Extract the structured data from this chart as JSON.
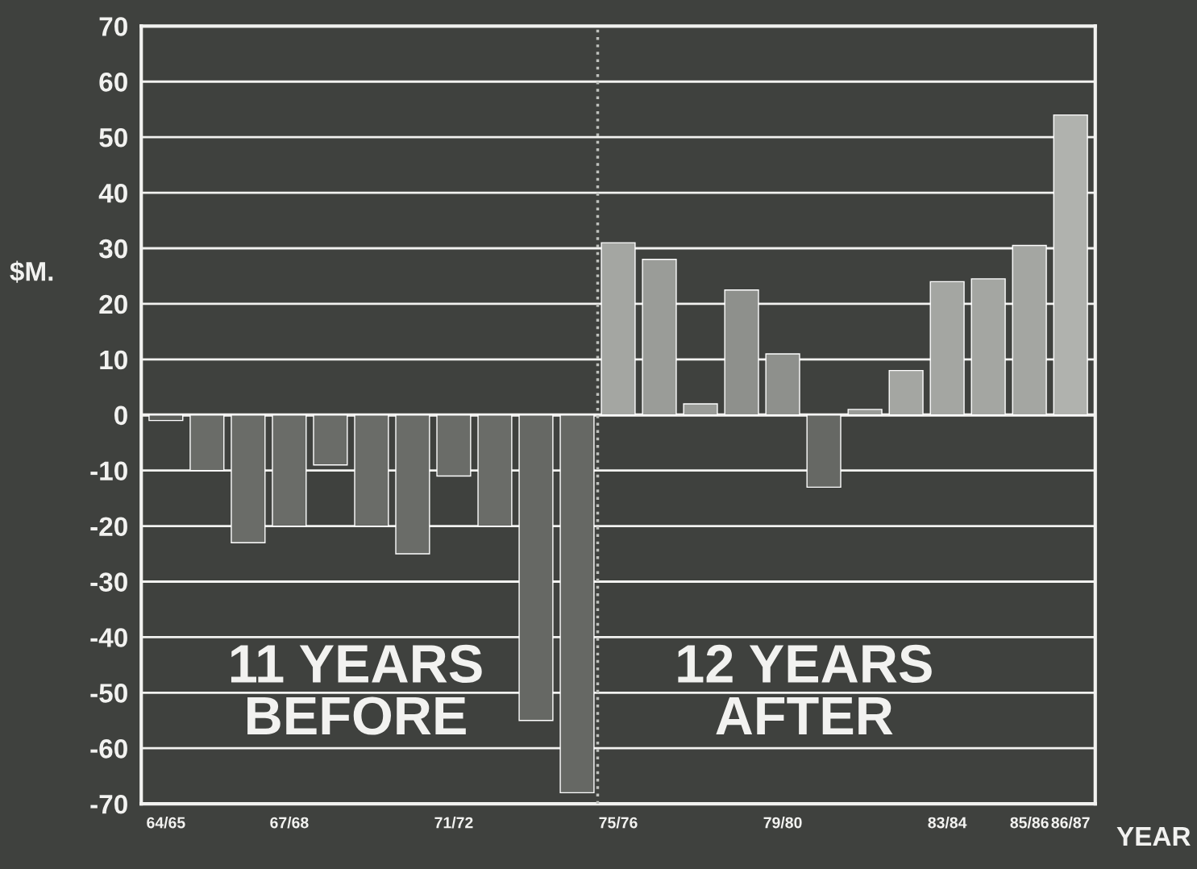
{
  "chart_data": {
    "type": "bar",
    "ylabel": "$M.",
    "xlabel": "YEAR",
    "categories": [
      "64/65",
      null,
      null,
      "67/68",
      null,
      null,
      null,
      "71/72",
      null,
      null,
      null,
      "75/76",
      null,
      null,
      null,
      "79/80",
      null,
      null,
      null,
      "83/84",
      null,
      "85/86",
      "86/87"
    ],
    "values": [
      -1,
      -10,
      -23,
      -20,
      -9,
      -20,
      -25,
      -11,
      -20,
      -55,
      -68,
      31,
      28,
      2,
      22.5,
      11,
      -13,
      1,
      8,
      24,
      24.5,
      30.5,
      54
    ],
    "colors": [
      "#5c5e5a",
      "#6a6c68",
      "#6a6c68",
      "#6a6c68",
      "#6a6c68",
      "#6a6c68",
      "#6a6c68",
      "#6a6c68",
      "#6a6c68",
      "#666864",
      "#666864",
      "#a4a6a2",
      "#9a9c98",
      "#9a9c98",
      "#8e908c",
      "#8e908c",
      "#666864",
      "#9a9c98",
      "#a4a6a2",
      "#a4a6a2",
      "#a4a6a2",
      "#a4a6a2",
      "#b0b2ae"
    ],
    "ylim": [
      -70,
      70
    ],
    "yticks": [
      -70,
      -60,
      -50,
      -40,
      -30,
      -20,
      -10,
      0,
      10,
      20,
      30,
      40,
      50,
      60,
      70
    ],
    "grid": "y",
    "annotations": [
      "11 YEARS\nBEFORE",
      "12 YEARS\nAFTER"
    ]
  }
}
